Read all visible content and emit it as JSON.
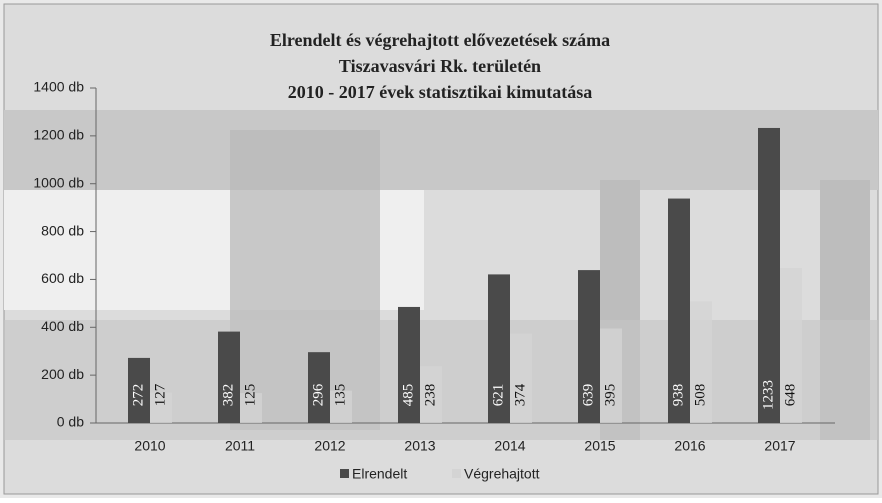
{
  "chart_data": {
    "type": "bar",
    "title": [
      "Elrendelt és végrehajtott elővezetések száma",
      "Tiszavasvári Rk. területén",
      "2010 - 2017 évek statisztikai kimutatása"
    ],
    "categories": [
      "2010",
      "2011",
      "2012",
      "2013",
      "2014",
      "2015",
      "2016",
      "2017"
    ],
    "series": [
      {
        "name": "Elrendelt",
        "color": "#4a4a4a",
        "values": [
          272,
          382,
          296,
          485,
          621,
          639,
          938,
          1233
        ]
      },
      {
        "name": "Végrehajtott",
        "color": "#d4d4d4",
        "values": [
          127,
          125,
          135,
          238,
          374,
          395,
          508,
          648
        ]
      }
    ],
    "ylim": [
      0,
      1400
    ],
    "yticks": [
      {
        "value": 0,
        "label": "0 db"
      },
      {
        "value": 200,
        "label": "200 db"
      },
      {
        "value": 400,
        "label": "400 db"
      },
      {
        "value": 600,
        "label": "600 db"
      },
      {
        "value": 800,
        "label": "800 db"
      },
      {
        "value": 1000,
        "label": "1000 db"
      },
      {
        "value": 1200,
        "label": "1200 db"
      },
      {
        "value": 1400,
        "label": "1400 db"
      }
    ],
    "legend": "bottom"
  }
}
